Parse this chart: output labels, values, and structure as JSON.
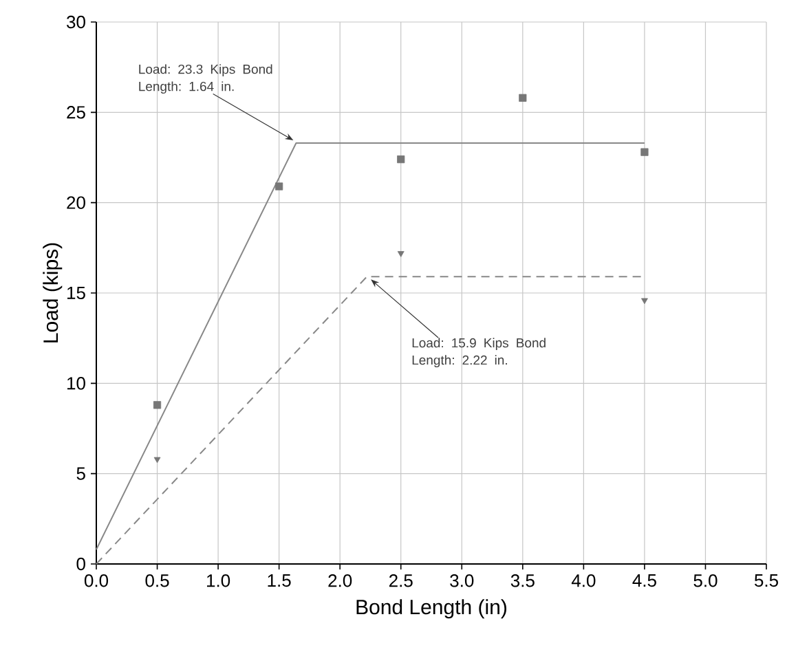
{
  "chart_data": {
    "type": "scatter",
    "xlabel": "Bond Length (in)",
    "ylabel": "Load (kips)",
    "xlim": [
      0,
      5.5
    ],
    "ylim": [
      0,
      30
    ],
    "xticks": [
      {
        "value": 0,
        "label": "0.0"
      },
      0.5,
      {
        "value": 1,
        "label": "1.0"
      },
      1.5,
      {
        "value": 2,
        "label": "2.0"
      },
      2.5,
      {
        "value": 3,
        "label": "3.0"
      },
      3.5,
      {
        "value": 4,
        "label": "4.0"
      },
      4.5,
      {
        "value": 5,
        "label": "5.0"
      },
      5.5
    ],
    "yticks": [
      0,
      5,
      10,
      15,
      20,
      25,
      30
    ],
    "grid": true,
    "series": [
      {
        "marker": "triangle",
        "color": "#777777",
        "x": [
          0.5,
          2.5,
          4.5
        ],
        "values": [
          5.8,
          17.2,
          14.6
        ]
      },
      {
        "marker": "square",
        "color": "#777777",
        "x": [
          0.5,
          1.5,
          2.5,
          3.5,
          4.5
        ],
        "values": [
          8.8,
          20.9,
          22.4,
          25.8,
          22.8
        ]
      },
      {
        "type": "line",
        "marker": "none",
        "line_style": "solid",
        "color": "#888888",
        "x": [
          0,
          1.64,
          4.5
        ],
        "values": [
          0.8,
          23.3,
          23.3
        ]
      },
      {
        "type": "line",
        "marker": "none",
        "line_style": "dashed",
        "color": "#888888",
        "x": [
          0,
          2.22,
          4.5
        ],
        "values": [
          0,
          15.9,
          15.9
        ]
      }
    ],
    "annotations": [
      {
        "text": "Load: 23.3 Kips Bond Length: 1.64 in.",
        "x": 1.64,
        "y": 23.3
      },
      {
        "text": "Load: 15.9 Kips Bond Length: 2.22 in.",
        "x": 2.22,
        "y": 15.9
      }
    ]
  }
}
